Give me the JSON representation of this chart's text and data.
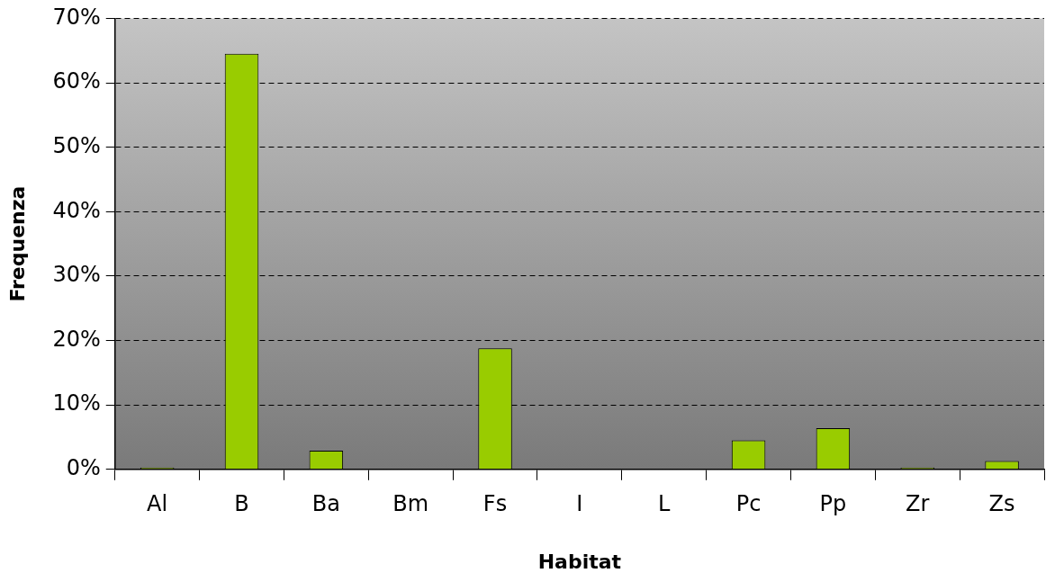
{
  "chart_data": {
    "type": "bar",
    "xlabel": "Habitat",
    "ylabel": "Frequenza",
    "categories": [
      "Al",
      "B",
      "Ba",
      "Bm",
      "Fs",
      "I",
      "L",
      "Pc",
      "Pp",
      "Zr",
      "Zs"
    ],
    "values": [
      0.3,
      64.5,
      2.9,
      0,
      18.8,
      0,
      0,
      4.5,
      6.4,
      0.3,
      1.3
    ],
    "color": "#99cc00",
    "ylim": [
      0,
      70
    ],
    "yticks": [
      {
        "value": 0,
        "label": "0%"
      },
      {
        "value": 10,
        "label": "10%"
      },
      {
        "value": 20,
        "label": "20%"
      },
      {
        "value": 30,
        "label": "30%"
      },
      {
        "value": 40,
        "label": "40%"
      },
      {
        "value": 50,
        "label": "50%"
      },
      {
        "value": 60,
        "label": "60%"
      },
      {
        "value": 70,
        "label": "70%"
      }
    ],
    "grid": "y",
    "legend": false
  }
}
